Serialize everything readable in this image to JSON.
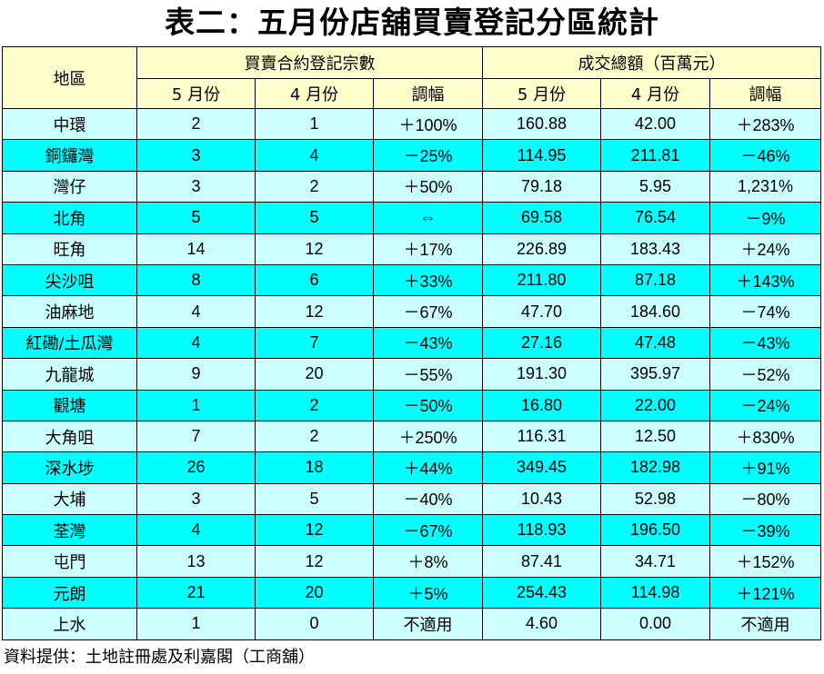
{
  "title": "表二：五月份店舖買賣登記分區統計",
  "header": {
    "region": "地區",
    "group_count": "買賣合約登記宗數",
    "group_value": "成交總額（百萬元）",
    "may": "5 月份",
    "apr": "4 月份",
    "change": "調幅"
  },
  "rows": [
    {
      "region": "中環",
      "c_may": "2",
      "c_apr": "1",
      "c_chg": "＋100%",
      "v_may": "160.88",
      "v_apr": "42.00",
      "v_chg": "＋283%"
    },
    {
      "region": "銅鑼灣",
      "c_may": "3",
      "c_apr": "4",
      "c_chg": "－25%",
      "v_may": "114.95",
      "v_apr": "211.81",
      "v_chg": "－46%"
    },
    {
      "region": "灣仔",
      "c_may": "3",
      "c_apr": "2",
      "c_chg": "＋50%",
      "v_may": "79.18",
      "v_apr": "5.95",
      "v_chg": "1,231%"
    },
    {
      "region": "北角",
      "c_may": "5",
      "c_apr": "5",
      "c_chg": "⇔",
      "v_may": "69.58",
      "v_apr": "76.54",
      "v_chg": "－9%"
    },
    {
      "region": "旺角",
      "c_may": "14",
      "c_apr": "12",
      "c_chg": "＋17%",
      "v_may": "226.89",
      "v_apr": "183.43",
      "v_chg": "＋24%"
    },
    {
      "region": "尖沙咀",
      "c_may": "8",
      "c_apr": "6",
      "c_chg": "＋33%",
      "v_may": "211.80",
      "v_apr": "87.18",
      "v_chg": "＋143%"
    },
    {
      "region": "油麻地",
      "c_may": "4",
      "c_apr": "12",
      "c_chg": "－67%",
      "v_may": "47.70",
      "v_apr": "184.60",
      "v_chg": "－74%"
    },
    {
      "region": "紅磡/土瓜灣",
      "c_may": "4",
      "c_apr": "7",
      "c_chg": "－43%",
      "v_may": "27.16",
      "v_apr": "47.48",
      "v_chg": "－43%"
    },
    {
      "region": "九龍城",
      "c_may": "9",
      "c_apr": "20",
      "c_chg": "－55%",
      "v_may": "191.30",
      "v_apr": "395.97",
      "v_chg": "－52%"
    },
    {
      "region": "觀塘",
      "c_may": "1",
      "c_apr": "2",
      "c_chg": "－50%",
      "v_may": "16.80",
      "v_apr": "22.00",
      "v_chg": "－24%"
    },
    {
      "region": "大角咀",
      "c_may": "7",
      "c_apr": "2",
      "c_chg": "＋250%",
      "v_may": "116.31",
      "v_apr": "12.50",
      "v_chg": "＋830%"
    },
    {
      "region": "深水埗",
      "c_may": "26",
      "c_apr": "18",
      "c_chg": "＋44%",
      "v_may": "349.45",
      "v_apr": "182.98",
      "v_chg": "＋91%"
    },
    {
      "region": "大埔",
      "c_may": "3",
      "c_apr": "5",
      "c_chg": "－40%",
      "v_may": "10.43",
      "v_apr": "52.98",
      "v_chg": "－80%"
    },
    {
      "region": "荃灣",
      "c_may": "4",
      "c_apr": "12",
      "c_chg": "－67%",
      "v_may": "118.93",
      "v_apr": "196.50",
      "v_chg": "－39%"
    },
    {
      "region": "屯門",
      "c_may": "13",
      "c_apr": "12",
      "c_chg": "＋8%",
      "v_may": "87.41",
      "v_apr": "34.71",
      "v_chg": "＋152%"
    },
    {
      "region": "元朗",
      "c_may": "21",
      "c_apr": "20",
      "c_chg": "＋5%",
      "v_may": "254.43",
      "v_apr": "114.98",
      "v_chg": "＋121%"
    },
    {
      "region": "上水",
      "c_may": "1",
      "c_apr": "0",
      "c_chg": "不適用",
      "v_may": "4.60",
      "v_apr": "0.00",
      "v_chg": "不適用"
    }
  ],
  "footer": "資料提供：土地註冊處及利嘉閣（工商舖）",
  "colors": {
    "header_bg": "#FFFFCC",
    "row_light": "#CCFFFF",
    "row_dark": "#00FFFF",
    "border": "#000000"
  }
}
